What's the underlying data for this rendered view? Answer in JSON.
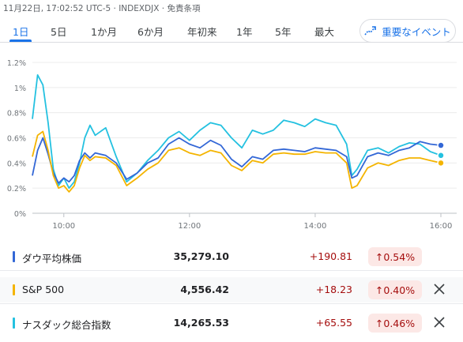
{
  "header": {
    "date_text": "11月22日, 17:02:52 UTC-5 · INDEXDJX · 免責条項"
  },
  "tabs": [
    {
      "label": "1日",
      "active": true
    },
    {
      "label": "5日"
    },
    {
      "label": "1か月"
    },
    {
      "label": "6か月"
    },
    {
      "label": "年初来"
    },
    {
      "label": "1年"
    },
    {
      "label": "5年"
    },
    {
      "label": "最大"
    }
  ],
  "events_button": {
    "label": "重要なイベント",
    "icon": "trend-line-icon"
  },
  "colors": {
    "accent": "#1a73e8",
    "dow": "#3367d6",
    "sp": "#f4b400",
    "nasdaq": "#24c1e0",
    "positive_red": "#a50e0e"
  },
  "chart_data": {
    "type": "line",
    "ylim": [
      0,
      1.2
    ],
    "yticks": [
      "0%",
      "0.2%",
      "0.4%",
      "0.6%",
      "0.8%",
      "1%",
      "1.2%"
    ],
    "xticks": [
      "10:00",
      "12:00",
      "14:00",
      "16:00"
    ],
    "x_range": [
      "09:30",
      "16:00"
    ],
    "x_unit": "time",
    "y_unit": "%",
    "series": [
      {
        "color": "#24c1e0",
        "points": [
          [
            "09:30",
            0.75
          ],
          [
            "09:35",
            1.1
          ],
          [
            "09:40",
            1.02
          ],
          [
            "09:45",
            0.72
          ],
          [
            "09:50",
            0.35
          ],
          [
            "09:55",
            0.22
          ],
          [
            "10:00",
            0.28
          ],
          [
            "10:05",
            0.2
          ],
          [
            "10:10",
            0.25
          ],
          [
            "10:15",
            0.4
          ],
          [
            "10:20",
            0.6
          ],
          [
            "10:25",
            0.7
          ],
          [
            "10:30",
            0.62
          ],
          [
            "10:40",
            0.68
          ],
          [
            "10:50",
            0.45
          ],
          [
            "11:00",
            0.25
          ],
          [
            "11:10",
            0.32
          ],
          [
            "11:20",
            0.42
          ],
          [
            "11:30",
            0.5
          ],
          [
            "11:40",
            0.6
          ],
          [
            "11:50",
            0.65
          ],
          [
            "12:00",
            0.58
          ],
          [
            "12:10",
            0.66
          ],
          [
            "12:20",
            0.72
          ],
          [
            "12:30",
            0.7
          ],
          [
            "12:40",
            0.6
          ],
          [
            "12:50",
            0.52
          ],
          [
            "13:00",
            0.66
          ],
          [
            "13:10",
            0.63
          ],
          [
            "13:20",
            0.66
          ],
          [
            "13:30",
            0.74
          ],
          [
            "13:40",
            0.72
          ],
          [
            "13:50",
            0.69
          ],
          [
            "14:00",
            0.75
          ],
          [
            "14:10",
            0.72
          ],
          [
            "14:20",
            0.7
          ],
          [
            "14:30",
            0.55
          ],
          [
            "14:35",
            0.3
          ],
          [
            "14:40",
            0.35
          ],
          [
            "14:50",
            0.5
          ],
          [
            "15:00",
            0.52
          ],
          [
            "15:10",
            0.48
          ],
          [
            "15:20",
            0.53
          ],
          [
            "15:30",
            0.56
          ],
          [
            "15:40",
            0.55
          ],
          [
            "15:50",
            0.49
          ],
          [
            "16:00",
            0.46
          ]
        ]
      },
      {
        "color": "#3367d6",
        "points": [
          [
            "09:30",
            0.3
          ],
          [
            "09:35",
            0.5
          ],
          [
            "09:40",
            0.6
          ],
          [
            "09:45",
            0.47
          ],
          [
            "09:50",
            0.32
          ],
          [
            "09:55",
            0.24
          ],
          [
            "10:00",
            0.28
          ],
          [
            "10:05",
            0.25
          ],
          [
            "10:10",
            0.3
          ],
          [
            "10:15",
            0.42
          ],
          [
            "10:20",
            0.48
          ],
          [
            "10:25",
            0.44
          ],
          [
            "10:30",
            0.48
          ],
          [
            "10:40",
            0.46
          ],
          [
            "10:50",
            0.4
          ],
          [
            "11:00",
            0.27
          ],
          [
            "11:10",
            0.32
          ],
          [
            "11:20",
            0.4
          ],
          [
            "11:30",
            0.44
          ],
          [
            "11:40",
            0.55
          ],
          [
            "11:50",
            0.6
          ],
          [
            "12:00",
            0.55
          ],
          [
            "12:10",
            0.52
          ],
          [
            "12:20",
            0.58
          ],
          [
            "12:30",
            0.54
          ],
          [
            "12:40",
            0.43
          ],
          [
            "12:50",
            0.37
          ],
          [
            "13:00",
            0.45
          ],
          [
            "13:10",
            0.43
          ],
          [
            "13:20",
            0.5
          ],
          [
            "13:30",
            0.51
          ],
          [
            "13:40",
            0.5
          ],
          [
            "13:50",
            0.49
          ],
          [
            "14:00",
            0.52
          ],
          [
            "14:10",
            0.51
          ],
          [
            "14:20",
            0.5
          ],
          [
            "14:30",
            0.45
          ],
          [
            "14:35",
            0.28
          ],
          [
            "14:40",
            0.3
          ],
          [
            "14:50",
            0.45
          ],
          [
            "15:00",
            0.48
          ],
          [
            "15:10",
            0.46
          ],
          [
            "15:20",
            0.5
          ],
          [
            "15:30",
            0.52
          ],
          [
            "15:40",
            0.57
          ],
          [
            "15:50",
            0.55
          ],
          [
            "16:00",
            0.54
          ]
        ]
      },
      {
        "color": "#f4b400",
        "points": [
          [
            "09:30",
            0.45
          ],
          [
            "09:35",
            0.62
          ],
          [
            "09:40",
            0.65
          ],
          [
            "09:45",
            0.5
          ],
          [
            "09:50",
            0.3
          ],
          [
            "09:55",
            0.2
          ],
          [
            "10:00",
            0.22
          ],
          [
            "10:05",
            0.17
          ],
          [
            "10:10",
            0.22
          ],
          [
            "10:15",
            0.36
          ],
          [
            "10:20",
            0.46
          ],
          [
            "10:25",
            0.42
          ],
          [
            "10:30",
            0.45
          ],
          [
            "10:40",
            0.44
          ],
          [
            "10:50",
            0.38
          ],
          [
            "11:00",
            0.22
          ],
          [
            "11:10",
            0.28
          ],
          [
            "11:20",
            0.35
          ],
          [
            "11:30",
            0.4
          ],
          [
            "11:40",
            0.5
          ],
          [
            "11:50",
            0.52
          ],
          [
            "12:00",
            0.48
          ],
          [
            "12:10",
            0.46
          ],
          [
            "12:20",
            0.5
          ],
          [
            "12:30",
            0.48
          ],
          [
            "12:40",
            0.38
          ],
          [
            "12:50",
            0.34
          ],
          [
            "13:00",
            0.42
          ],
          [
            "13:10",
            0.4
          ],
          [
            "13:20",
            0.47
          ],
          [
            "13:30",
            0.48
          ],
          [
            "13:40",
            0.47
          ],
          [
            "13:50",
            0.47
          ],
          [
            "14:00",
            0.49
          ],
          [
            "14:10",
            0.48
          ],
          [
            "14:20",
            0.48
          ],
          [
            "14:30",
            0.4
          ],
          [
            "14:35",
            0.2
          ],
          [
            "14:40",
            0.22
          ],
          [
            "14:50",
            0.36
          ],
          [
            "15:00",
            0.4
          ],
          [
            "15:10",
            0.38
          ],
          [
            "15:20",
            0.42
          ],
          [
            "15:30",
            0.44
          ],
          [
            "15:40",
            0.44
          ],
          [
            "15:50",
            0.42
          ],
          [
            "16:00",
            0.4
          ]
        ]
      }
    ]
  },
  "indices": [
    {
      "name": "ダウ平均株価",
      "price": "35,279.10",
      "change": "+190.81",
      "percent": "0.54%",
      "color": "#3367d6",
      "removable": false
    },
    {
      "name": "S&P 500",
      "price": "4,556.42",
      "change": "+18.23",
      "percent": "0.40%",
      "color": "#f4b400",
      "removable": true
    },
    {
      "name": "ナスダック総合指数",
      "price": "14,265.53",
      "change": "+65.55",
      "percent": "0.46%",
      "color": "#24c1e0",
      "removable": true
    }
  ]
}
